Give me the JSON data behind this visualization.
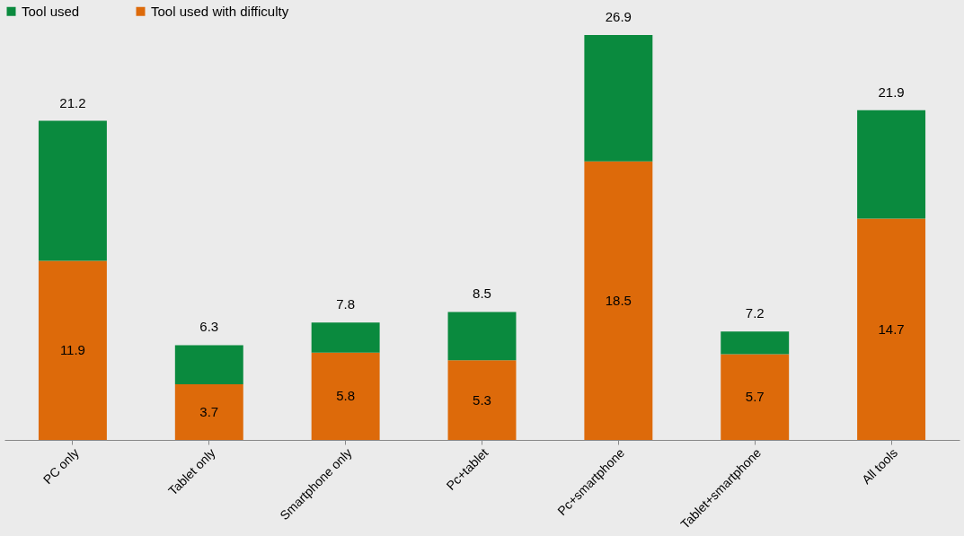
{
  "chart_data": {
    "type": "bar",
    "stacked": true,
    "categories": [
      "PC only",
      "Tablet only",
      "Smartphone only",
      "Pc+tablet",
      "Pc+smartphone",
      "Tablet+smartphone",
      "All tools"
    ],
    "series": [
      {
        "name": "Tool used with difficulty",
        "color": "#dd6a0a",
        "values": [
          11.9,
          3.7,
          5.8,
          5.3,
          18.5,
          5.7,
          14.7
        ],
        "value_labels": [
          "11.9",
          "3.7",
          "5.8",
          "5.3",
          "18.5",
          "5.7",
          "14.7"
        ]
      },
      {
        "name": "Tool used",
        "color": "#0a8a3e",
        "values": [
          9.3,
          2.6,
          2.0,
          3.2,
          8.4,
          1.5,
          7.2
        ]
      }
    ],
    "totals": [
      "21.2",
      "6.3",
      "7.8",
      "8.5",
      "26.9",
      "7.2",
      "21.9"
    ],
    "tick_labels": "x",
    "grid": false,
    "legend": "top"
  }
}
